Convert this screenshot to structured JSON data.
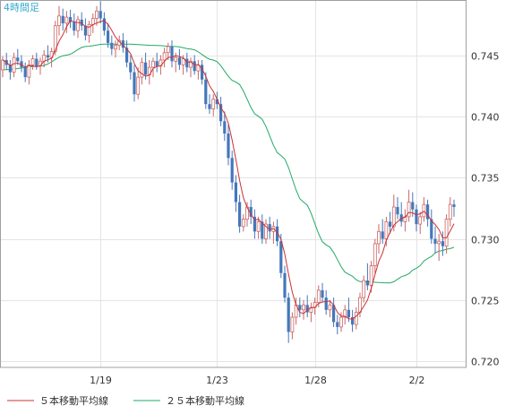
{
  "chart_data": {
    "type": "candlestick",
    "title": "4時間足",
    "xlabel": "",
    "ylabel": "",
    "ylim": [
      0.7195,
      0.7495
    ],
    "y_ticks": [
      0.72,
      0.725,
      0.73,
      0.735,
      0.74,
      0.745
    ],
    "y_tick_labels": [
      "0.720",
      "0.725",
      "0.730",
      "0.735",
      "0.740",
      "0.745"
    ],
    "x_ticks": [
      {
        "label": "1/19",
        "index": 26
      },
      {
        "label": "1/23",
        "index": 57
      },
      {
        "label": "1/28",
        "index": 83
      },
      {
        "label": "2/2",
        "index": 110
      }
    ],
    "grid": true,
    "legend_position": "bottom",
    "colors": {
      "up": "#cc6666",
      "down": "#4477bb",
      "ma5": "#cc3333",
      "ma25": "#22aa66",
      "grid": "#e4e4e4",
      "frame": "#a0a0a0",
      "title": "#33aacc"
    },
    "series": [
      {
        "name": "５本移動平均線",
        "color": "#cc3333"
      },
      {
        "name": "２５本移動平均線",
        "color": "#22aa66"
      }
    ],
    "candles": [
      [
        0.7438,
        0.7449,
        0.7432,
        0.7446
      ],
      [
        0.7446,
        0.7452,
        0.7438,
        0.7442
      ],
      [
        0.7442,
        0.7446,
        0.743,
        0.7436
      ],
      [
        0.7436,
        0.7452,
        0.7432,
        0.7448
      ],
      [
        0.7448,
        0.7455,
        0.7442,
        0.7445
      ],
      [
        0.7445,
        0.745,
        0.7436,
        0.744
      ],
      [
        0.744,
        0.7444,
        0.7428,
        0.7432
      ],
      [
        0.7432,
        0.7446,
        0.7426,
        0.7442
      ],
      [
        0.7442,
        0.745,
        0.7438,
        0.7447
      ],
      [
        0.7447,
        0.7452,
        0.7438,
        0.7441
      ],
      [
        0.7441,
        0.7448,
        0.7434,
        0.7445
      ],
      [
        0.7445,
        0.7454,
        0.744,
        0.745
      ],
      [
        0.745,
        0.7458,
        0.7444,
        0.7448
      ],
      [
        0.7448,
        0.7456,
        0.744,
        0.7453
      ],
      [
        0.7453,
        0.7478,
        0.745,
        0.7474
      ],
      [
        0.7474,
        0.749,
        0.7466,
        0.7482
      ],
      [
        0.7482,
        0.7488,
        0.747,
        0.7476
      ],
      [
        0.7476,
        0.7486,
        0.7468,
        0.7481
      ],
      [
        0.7481,
        0.7487,
        0.7472,
        0.7477
      ],
      [
        0.7477,
        0.7484,
        0.7466,
        0.747
      ],
      [
        0.747,
        0.7482,
        0.7464,
        0.7479
      ],
      [
        0.7479,
        0.7485,
        0.747,
        0.7474
      ],
      [
        0.7474,
        0.748,
        0.7462,
        0.7466
      ],
      [
        0.7466,
        0.7478,
        0.746,
        0.7475
      ],
      [
        0.7475,
        0.7484,
        0.7468,
        0.748
      ],
      [
        0.748,
        0.749,
        0.7474,
        0.7486
      ],
      [
        0.7486,
        0.7494,
        0.7476,
        0.748
      ],
      [
        0.748,
        0.7485,
        0.7466,
        0.747
      ],
      [
        0.747,
        0.7476,
        0.7456,
        0.746
      ],
      [
        0.746,
        0.7466,
        0.745,
        0.7455
      ],
      [
        0.7455,
        0.7462,
        0.7448,
        0.7458
      ],
      [
        0.7458,
        0.7466,
        0.7454,
        0.7462
      ],
      [
        0.7462,
        0.7468,
        0.7452,
        0.7456
      ],
      [
        0.7456,
        0.7462,
        0.744,
        0.7444
      ],
      [
        0.7444,
        0.745,
        0.743,
        0.7436
      ],
      [
        0.7436,
        0.7442,
        0.7412,
        0.7418
      ],
      [
        0.7418,
        0.744,
        0.7414,
        0.7432
      ],
      [
        0.7432,
        0.7448,
        0.7426,
        0.7444
      ],
      [
        0.7444,
        0.7452,
        0.743,
        0.7434
      ],
      [
        0.7434,
        0.7446,
        0.7426,
        0.744
      ],
      [
        0.744,
        0.7448,
        0.7432,
        0.7445
      ],
      [
        0.7445,
        0.7452,
        0.7436,
        0.7441
      ],
      [
        0.7441,
        0.745,
        0.7434,
        0.7446
      ],
      [
        0.7446,
        0.7456,
        0.744,
        0.7452
      ],
      [
        0.7452,
        0.746,
        0.7446,
        0.7457
      ],
      [
        0.7457,
        0.7462,
        0.744,
        0.7445
      ],
      [
        0.7445,
        0.7452,
        0.7436,
        0.7448
      ],
      [
        0.7448,
        0.7455,
        0.7438,
        0.7442
      ],
      [
        0.7442,
        0.745,
        0.7434,
        0.7447
      ],
      [
        0.7447,
        0.7452,
        0.7436,
        0.744
      ],
      [
        0.744,
        0.7448,
        0.7432,
        0.7445
      ],
      [
        0.7445,
        0.745,
        0.7434,
        0.7437
      ],
      [
        0.7437,
        0.7446,
        0.743,
        0.7442
      ],
      [
        0.7442,
        0.7446,
        0.7426,
        0.743
      ],
      [
        0.743,
        0.7436,
        0.7406,
        0.741
      ],
      [
        0.741,
        0.7418,
        0.7402,
        0.7406
      ],
      [
        0.7406,
        0.7418,
        0.74,
        0.7414
      ],
      [
        0.7414,
        0.742,
        0.7406,
        0.741
      ],
      [
        0.741,
        0.7416,
        0.7392,
        0.7396
      ],
      [
        0.7396,
        0.7404,
        0.738,
        0.7386
      ],
      [
        0.7386,
        0.7394,
        0.736,
        0.7366
      ],
      [
        0.7366,
        0.7372,
        0.734,
        0.7346
      ],
      [
        0.7346,
        0.7352,
        0.7322,
        0.733
      ],
      [
        0.733,
        0.7336,
        0.7305,
        0.731
      ],
      [
        0.731,
        0.732,
        0.7306,
        0.7316
      ],
      [
        0.7316,
        0.733,
        0.731,
        0.7326
      ],
      [
        0.7326,
        0.7332,
        0.7312,
        0.7318
      ],
      [
        0.7318,
        0.7324,
        0.73,
        0.7306
      ],
      [
        0.7306,
        0.7318,
        0.73,
        0.7314
      ],
      [
        0.7314,
        0.732,
        0.7296,
        0.73
      ],
      [
        0.73,
        0.7316,
        0.7296,
        0.7312
      ],
      [
        0.7312,
        0.7318,
        0.73,
        0.7306
      ],
      [
        0.7306,
        0.7314,
        0.7296,
        0.731
      ],
      [
        0.731,
        0.7316,
        0.7294,
        0.7298
      ],
      [
        0.7298,
        0.7304,
        0.7268,
        0.7272
      ],
      [
        0.7272,
        0.7278,
        0.7248,
        0.7252
      ],
      [
        0.7252,
        0.7256,
        0.7215,
        0.7224
      ],
      [
        0.7224,
        0.724,
        0.7218,
        0.7236
      ],
      [
        0.7236,
        0.7252,
        0.723,
        0.7246
      ],
      [
        0.7246,
        0.7252,
        0.7236,
        0.7242
      ],
      [
        0.7242,
        0.725,
        0.7234,
        0.7246
      ],
      [
        0.7246,
        0.7254,
        0.7236,
        0.724
      ],
      [
        0.724,
        0.7248,
        0.7232,
        0.7244
      ],
      [
        0.7244,
        0.7252,
        0.7238,
        0.7248
      ],
      [
        0.7248,
        0.7262,
        0.7244,
        0.7258
      ],
      [
        0.7258,
        0.7264,
        0.7248,
        0.7252
      ],
      [
        0.7252,
        0.7258,
        0.7238,
        0.7242
      ],
      [
        0.7242,
        0.725,
        0.7236,
        0.7246
      ],
      [
        0.7246,
        0.7252,
        0.7228,
        0.7232
      ],
      [
        0.7232,
        0.7238,
        0.7222,
        0.7228
      ],
      [
        0.7228,
        0.724,
        0.7224,
        0.7236
      ],
      [
        0.7236,
        0.7246,
        0.723,
        0.7242
      ],
      [
        0.7242,
        0.7252,
        0.7232,
        0.7236
      ],
      [
        0.7236,
        0.7242,
        0.7224,
        0.723
      ],
      [
        0.723,
        0.7244,
        0.7226,
        0.724
      ],
      [
        0.724,
        0.7256,
        0.7236,
        0.7252
      ],
      [
        0.7252,
        0.727,
        0.7248,
        0.7266
      ],
      [
        0.7266,
        0.728,
        0.7258,
        0.7262
      ],
      [
        0.7262,
        0.7282,
        0.7256,
        0.7278
      ],
      [
        0.7278,
        0.73,
        0.7272,
        0.7296
      ],
      [
        0.7296,
        0.7312,
        0.7288,
        0.7306
      ],
      [
        0.7306,
        0.7316,
        0.7296,
        0.73
      ],
      [
        0.73,
        0.7318,
        0.7294,
        0.7314
      ],
      [
        0.7314,
        0.7322,
        0.7304,
        0.731
      ],
      [
        0.731,
        0.7336,
        0.7306,
        0.7326
      ],
      [
        0.7326,
        0.7334,
        0.7316,
        0.732
      ],
      [
        0.732,
        0.733,
        0.731,
        0.7314
      ],
      [
        0.7314,
        0.7324,
        0.7306,
        0.7318
      ],
      [
        0.7318,
        0.734,
        0.7314,
        0.733
      ],
      [
        0.733,
        0.7338,
        0.7318,
        0.7324
      ],
      [
        0.7324,
        0.7328,
        0.7306,
        0.7312
      ],
      [
        0.7312,
        0.7322,
        0.7304,
        0.7318
      ],
      [
        0.7318,
        0.7334,
        0.7314,
        0.7328
      ],
      [
        0.7328,
        0.7332,
        0.731,
        0.7316
      ],
      [
        0.7316,
        0.7324,
        0.7296,
        0.73
      ],
      [
        0.73,
        0.731,
        0.7288,
        0.7296
      ],
      [
        0.7296,
        0.7304,
        0.7282,
        0.7298
      ],
      [
        0.7298,
        0.7306,
        0.7286,
        0.7294
      ],
      [
        0.7294,
        0.732,
        0.7288,
        0.7316
      ],
      [
        0.7316,
        0.7334,
        0.731,
        0.7328
      ],
      [
        0.7328,
        0.7332,
        0.7318,
        0.7326
      ]
    ],
    "ma25_anchors": [
      [
        0,
        0.7438
      ],
      [
        10,
        0.7441
      ],
      [
        17,
        0.745
      ],
      [
        22,
        0.7457
      ],
      [
        27,
        0.7459
      ],
      [
        33,
        0.7459
      ],
      [
        40,
        0.7458
      ],
      [
        46,
        0.7457
      ],
      [
        50,
        0.7455
      ],
      [
        56,
        0.7446
      ],
      [
        62,
        0.7428
      ],
      [
        68,
        0.74
      ],
      [
        74,
        0.7368
      ],
      [
        80,
        0.733
      ],
      [
        86,
        0.7295
      ],
      [
        92,
        0.7271
      ],
      [
        95,
        0.7265
      ],
      [
        103,
        0.7264
      ],
      [
        107,
        0.727
      ],
      [
        110,
        0.7276
      ],
      [
        113,
        0.7284
      ],
      [
        116,
        0.729
      ],
      [
        119,
        0.7292
      ],
      [
        122,
        0.7296
      ]
    ]
  }
}
